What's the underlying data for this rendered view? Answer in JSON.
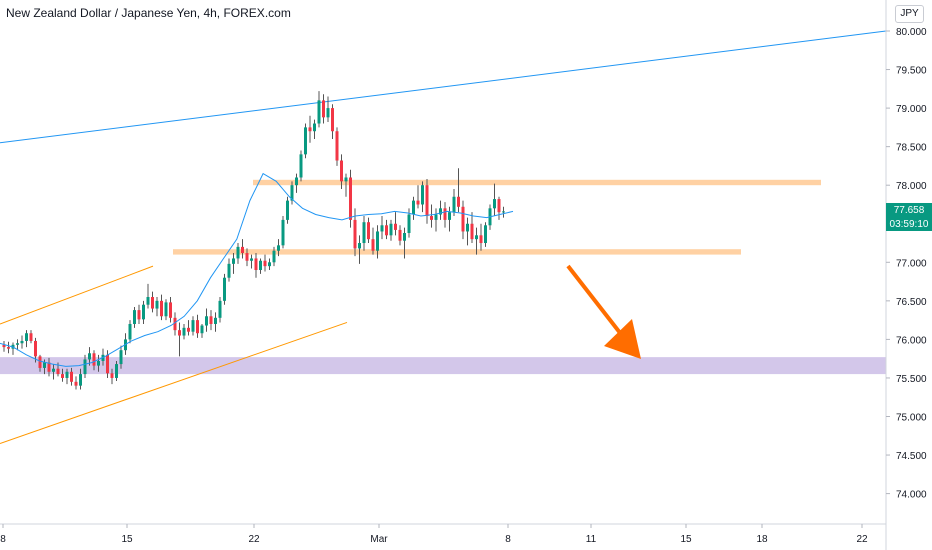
{
  "title": "New Zealand Dollar / Japanese Yen, 4h, FOREX.com",
  "currency_label": "JPY",
  "last_price": "77.658",
  "countdown": "03:59:10",
  "colors": {
    "up": "#089981",
    "down": "#f23645",
    "wick": "#555555",
    "ma": "#2196f3",
    "trendline": "#2196f3",
    "channel": "#ff9800",
    "resistance_zone": "#ffcc99",
    "support_zone": "#d1c4e9",
    "arrow": "#ff6d00",
    "price_badge": "#089981"
  },
  "chart_data": {
    "type": "candlestick",
    "title": "New Zealand Dollar / Japanese Yen, 4h, FOREX.com",
    "y_ticks": [
      "80.000",
      "79.500",
      "79.000",
      "78.500",
      "78.000",
      "77.500",
      "77.000",
      "76.500",
      "76.000",
      "75.500",
      "75.000",
      "74.500",
      "74.000"
    ],
    "x_ticks": [
      "8",
      "15",
      "22",
      "Mar",
      "8",
      "11",
      "15",
      "18",
      "22"
    ],
    "ylim": [
      73.65,
      80.35
    ],
    "grid": false,
    "indicator": "moving-average",
    "candles_ohlc": [
      [
        75.93,
        75.98,
        75.84,
        75.9
      ],
      [
        75.9,
        75.97,
        75.82,
        75.88
      ],
      [
        75.88,
        75.96,
        75.8,
        75.93
      ],
      [
        75.93,
        76.0,
        75.86,
        75.95
      ],
      [
        75.95,
        76.05,
        75.88,
        75.98
      ],
      [
        75.98,
        76.12,
        75.9,
        76.08
      ],
      [
        76.08,
        76.12,
        75.95,
        75.98
      ],
      [
        75.98,
        76.02,
        75.7,
        75.78
      ],
      [
        75.78,
        75.8,
        75.58,
        75.63
      ],
      [
        75.63,
        75.74,
        75.55,
        75.7
      ],
      [
        75.7,
        75.76,
        75.52,
        75.58
      ],
      [
        75.58,
        75.68,
        75.48,
        75.62
      ],
      [
        75.62,
        75.7,
        75.52,
        75.55
      ],
      [
        75.55,
        75.62,
        75.45,
        75.5
      ],
      [
        75.5,
        75.62,
        75.42,
        75.58
      ],
      [
        75.58,
        75.63,
        75.4,
        75.45
      ],
      [
        75.45,
        75.52,
        75.35,
        75.4
      ],
      [
        75.4,
        75.62,
        75.35,
        75.55
      ],
      [
        75.55,
        75.8,
        75.5,
        75.74
      ],
      [
        75.74,
        75.9,
        75.66,
        75.82
      ],
      [
        75.82,
        75.86,
        75.6,
        75.66
      ],
      [
        75.66,
        75.8,
        75.58,
        75.72
      ],
      [
        75.72,
        75.88,
        75.66,
        75.8
      ],
      [
        75.8,
        75.86,
        75.5,
        75.56
      ],
      [
        75.56,
        75.62,
        75.42,
        75.5
      ],
      [
        75.5,
        75.72,
        75.46,
        75.68
      ],
      [
        75.68,
        75.92,
        75.62,
        75.86
      ],
      [
        75.86,
        76.08,
        75.8,
        76.0
      ],
      [
        76.0,
        76.25,
        75.95,
        76.2
      ],
      [
        76.2,
        76.42,
        76.15,
        76.38
      ],
      [
        76.38,
        76.45,
        76.2,
        76.26
      ],
      [
        76.26,
        76.5,
        76.2,
        76.45
      ],
      [
        76.45,
        76.72,
        76.4,
        76.55
      ],
      [
        76.55,
        76.62,
        76.35,
        76.4
      ],
      [
        76.4,
        76.55,
        76.3,
        76.5
      ],
      [
        76.5,
        76.58,
        76.25,
        76.3
      ],
      [
        76.3,
        76.52,
        76.25,
        76.48
      ],
      [
        76.48,
        76.55,
        76.22,
        76.28
      ],
      [
        76.28,
        76.35,
        76.05,
        76.12
      ],
      [
        76.12,
        76.22,
        75.78,
        76.05
      ],
      [
        76.05,
        76.2,
        76.0,
        76.15
      ],
      [
        76.15,
        76.25,
        76.05,
        76.1
      ],
      [
        76.1,
        76.3,
        76.05,
        76.25
      ],
      [
        76.25,
        76.32,
        76.02,
        76.08
      ],
      [
        76.08,
        76.2,
        76.02,
        76.18
      ],
      [
        76.18,
        76.4,
        76.1,
        76.3
      ],
      [
        76.3,
        76.38,
        76.12,
        76.2
      ],
      [
        76.2,
        76.35,
        76.1,
        76.28
      ],
      [
        76.28,
        76.55,
        76.22,
        76.5
      ],
      [
        76.5,
        76.85,
        76.45,
        76.8
      ],
      [
        76.8,
        77.05,
        76.75,
        76.98
      ],
      [
        76.98,
        77.12,
        76.85,
        77.05
      ],
      [
        77.05,
        77.25,
        76.98,
        77.2
      ],
      [
        77.2,
        77.3,
        77.05,
        77.12
      ],
      [
        77.12,
        77.18,
        76.95,
        77.02
      ],
      [
        77.02,
        77.1,
        76.92,
        77.05
      ],
      [
        77.05,
        77.12,
        76.8,
        76.9
      ],
      [
        76.9,
        77.05,
        76.85,
        77.02
      ],
      [
        77.02,
        77.1,
        76.88,
        76.95
      ],
      [
        76.95,
        77.05,
        76.9,
        77.0
      ],
      [
        77.0,
        77.2,
        76.95,
        77.15
      ],
      [
        77.15,
        77.3,
        77.08,
        77.22
      ],
      [
        77.22,
        77.6,
        77.18,
        77.55
      ],
      [
        77.55,
        77.85,
        77.5,
        77.8
      ],
      [
        77.8,
        78.05,
        77.75,
        78.0
      ],
      [
        78.0,
        78.15,
        77.9,
        78.1
      ],
      [
        78.1,
        78.45,
        78.05,
        78.4
      ],
      [
        78.4,
        78.8,
        78.35,
        78.75
      ],
      [
        78.75,
        78.9,
        78.55,
        78.7
      ],
      [
        78.7,
        78.85,
        78.6,
        78.8
      ],
      [
        78.8,
        79.22,
        78.75,
        79.1
      ],
      [
        79.1,
        79.18,
        78.8,
        78.88
      ],
      [
        78.88,
        79.15,
        78.82,
        79.0
      ],
      [
        79.0,
        79.05,
        78.6,
        78.7
      ],
      [
        78.7,
        78.75,
        78.25,
        78.32
      ],
      [
        78.32,
        78.4,
        77.95,
        78.05
      ],
      [
        78.05,
        78.15,
        77.85,
        78.1
      ],
      [
        78.1,
        78.2,
        77.45,
        77.55
      ],
      [
        77.55,
        77.7,
        77.08,
        77.18
      ],
      [
        77.18,
        77.35,
        76.98,
        77.25
      ],
      [
        77.25,
        77.6,
        77.15,
        77.52
      ],
      [
        77.52,
        77.58,
        77.25,
        77.3
      ],
      [
        77.3,
        77.45,
        77.1,
        77.15
      ],
      [
        77.15,
        77.48,
        77.05,
        77.4
      ],
      [
        77.4,
        77.6,
        77.3,
        77.48
      ],
      [
        77.48,
        77.55,
        77.3,
        77.35
      ],
      [
        77.35,
        77.55,
        77.28,
        77.5
      ],
      [
        77.5,
        77.65,
        77.35,
        77.42
      ],
      [
        77.42,
        77.48,
        77.22,
        77.28
      ],
      [
        77.28,
        77.45,
        77.05,
        77.38
      ],
      [
        77.38,
        77.7,
        77.32,
        77.62
      ],
      [
        77.62,
        77.85,
        77.55,
        77.8
      ],
      [
        77.8,
        78.0,
        77.7,
        77.75
      ],
      [
        77.75,
        78.05,
        77.65,
        78.0
      ],
      [
        78.0,
        78.08,
        77.5,
        77.6
      ],
      [
        77.6,
        77.75,
        77.45,
        77.55
      ],
      [
        77.55,
        77.7,
        77.4,
        77.62
      ],
      [
        77.62,
        77.8,
        77.55,
        77.7
      ],
      [
        77.7,
        77.78,
        77.45,
        77.55
      ],
      [
        77.55,
        77.72,
        77.4,
        77.65
      ],
      [
        77.65,
        77.95,
        77.6,
        77.85
      ],
      [
        77.85,
        78.22,
        77.65,
        77.72
      ],
      [
        77.72,
        77.8,
        77.3,
        77.4
      ],
      [
        77.4,
        77.58,
        77.22,
        77.5
      ],
      [
        77.5,
        77.65,
        77.25,
        77.3
      ],
      [
        77.3,
        77.45,
        77.1,
        77.35
      ],
      [
        77.35,
        77.5,
        77.15,
        77.25
      ],
      [
        77.25,
        77.52,
        77.2,
        77.48
      ],
      [
        77.48,
        77.75,
        77.42,
        77.7
      ],
      [
        77.7,
        78.02,
        77.6,
        77.82
      ],
      [
        77.82,
        77.85,
        77.55,
        77.65
      ],
      [
        77.65,
        77.72,
        77.58,
        77.66
      ]
    ],
    "ma_values": [
      75.95,
      75.9,
      75.8,
      75.72,
      75.68,
      75.65,
      75.66,
      75.7,
      75.78,
      75.88,
      75.98,
      76.05,
      76.1,
      76.18,
      76.3,
      76.5,
      76.8,
      77.05,
      77.3,
      77.8,
      78.15,
      78.05,
      77.85,
      77.7,
      77.62,
      77.58,
      77.55,
      77.6,
      77.62,
      77.63,
      77.66,
      77.64,
      77.6,
      77.62,
      77.66,
      77.64,
      77.6,
      77.58,
      77.62,
      77.66
    ],
    "overlays": {
      "trendline_prices": [
        78.55,
        80.0
      ],
      "channel_upper_prices": [
        76.2,
        76.95
      ],
      "channel_lower_prices": [
        74.65,
        76.22
      ],
      "resistance_zone": [
        78.0,
        78.07
      ],
      "support_zone": [
        77.1,
        77.17
      ],
      "target_zone": [
        75.55,
        75.77
      ],
      "projection": "downward arrow"
    }
  }
}
